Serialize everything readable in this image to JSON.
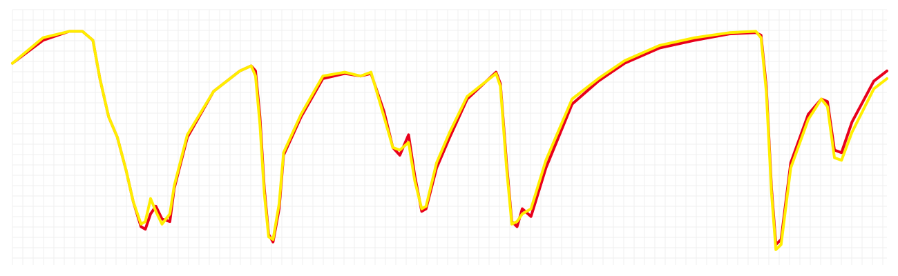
{
  "chart_data": {
    "type": "line",
    "title": "",
    "xlabel": "",
    "ylabel": "",
    "grid": true,
    "xlim": [
      0,
      100
    ],
    "ylim": [
      0,
      100
    ],
    "series": [
      {
        "color": "#e8001c",
        "points": [
          [
            0,
            79
          ],
          [
            3.5,
            88
          ],
          [
            6.5,
            91.5
          ],
          [
            8,
            91.5
          ],
          [
            9.2,
            88
          ],
          [
            10,
            73
          ],
          [
            11,
            58
          ],
          [
            12,
            50
          ],
          [
            13,
            37
          ],
          [
            13.8,
            25
          ],
          [
            14.7,
            15
          ],
          [
            15.2,
            14
          ],
          [
            15.8,
            20
          ],
          [
            16.4,
            23
          ],
          [
            17.1,
            18
          ],
          [
            18,
            17
          ],
          [
            18.5,
            30
          ],
          [
            20,
            50
          ],
          [
            23,
            68
          ],
          [
            26,
            76
          ],
          [
            27.3,
            78
          ],
          [
            27.8,
            76
          ],
          [
            28.3,
            58
          ],
          [
            28.8,
            30
          ],
          [
            29.3,
            12
          ],
          [
            29.8,
            9
          ],
          [
            30.5,
            22
          ],
          [
            31,
            43
          ],
          [
            33,
            58
          ],
          [
            35.5,
            73
          ],
          [
            38,
            75
          ],
          [
            39.8,
            74
          ],
          [
            41,
            75
          ],
          [
            42.5,
            60
          ],
          [
            43.5,
            46
          ],
          [
            44.3,
            43
          ],
          [
            45.3,
            51
          ],
          [
            46,
            35
          ],
          [
            46.8,
            21
          ],
          [
            47.3,
            22
          ],
          [
            48.5,
            38
          ],
          [
            50,
            50
          ],
          [
            52,
            65
          ],
          [
            55.3,
            75.5
          ],
          [
            55.8,
            71
          ],
          [
            56.5,
            40
          ],
          [
            57.1,
            17
          ],
          [
            57.7,
            15
          ],
          [
            58.3,
            22
          ],
          [
            59.3,
            19
          ],
          [
            61,
            38
          ],
          [
            64,
            63
          ],
          [
            67,
            72
          ],
          [
            70,
            79
          ],
          [
            74,
            85
          ],
          [
            78,
            88
          ],
          [
            82,
            90.5
          ],
          [
            85,
            91
          ],
          [
            85.6,
            90
          ],
          [
            86.2,
            70
          ],
          [
            86.8,
            30
          ],
          [
            87.3,
            8
          ],
          [
            87.9,
            10
          ],
          [
            89,
            40
          ],
          [
            91,
            59
          ],
          [
            92.5,
            65
          ],
          [
            93.2,
            64
          ],
          [
            94,
            45
          ],
          [
            94.8,
            44
          ],
          [
            96,
            56
          ],
          [
            98.5,
            72
          ],
          [
            100,
            76
          ]
        ]
      },
      {
        "color": "#ffee00",
        "points": [
          [
            0,
            79
          ],
          [
            3.5,
            89
          ],
          [
            6.5,
            91.5
          ],
          [
            8,
            91.5
          ],
          [
            9.2,
            88
          ],
          [
            10,
            73
          ],
          [
            11,
            58
          ],
          [
            12,
            50
          ],
          [
            13,
            37
          ],
          [
            13.8,
            25
          ],
          [
            14.7,
            16
          ],
          [
            15.2,
            17
          ],
          [
            15.8,
            26
          ],
          [
            16.4,
            21
          ],
          [
            17.1,
            16
          ],
          [
            18,
            20
          ],
          [
            18.5,
            31
          ],
          [
            20,
            51
          ],
          [
            23,
            68
          ],
          [
            26,
            76
          ],
          [
            27.3,
            78
          ],
          [
            27.8,
            74
          ],
          [
            28.3,
            55
          ],
          [
            28.8,
            28
          ],
          [
            29.3,
            11
          ],
          [
            29.8,
            10
          ],
          [
            30.5,
            24
          ],
          [
            31,
            44
          ],
          [
            33,
            59
          ],
          [
            35.5,
            74
          ],
          [
            38,
            75.5
          ],
          [
            39.8,
            74
          ],
          [
            41,
            75.5
          ],
          [
            42.5,
            58
          ],
          [
            43.5,
            46
          ],
          [
            44.3,
            45
          ],
          [
            45.3,
            48
          ],
          [
            46,
            33
          ],
          [
            46.8,
            22
          ],
          [
            47.3,
            23
          ],
          [
            48.5,
            40
          ],
          [
            50,
            52
          ],
          [
            52,
            66
          ],
          [
            55.3,
            75
          ],
          [
            55.8,
            70
          ],
          [
            56.5,
            38
          ],
          [
            57.1,
            16
          ],
          [
            57.7,
            17
          ],
          [
            58.3,
            20
          ],
          [
            59.3,
            22
          ],
          [
            61,
            41
          ],
          [
            64,
            65
          ],
          [
            67,
            73
          ],
          [
            70,
            80
          ],
          [
            74,
            86
          ],
          [
            78,
            89
          ],
          [
            82,
            91
          ],
          [
            85,
            91.5
          ],
          [
            85.6,
            89
          ],
          [
            86.2,
            68
          ],
          [
            86.8,
            28
          ],
          [
            87.3,
            6
          ],
          [
            87.9,
            8
          ],
          [
            89,
            38
          ],
          [
            91,
            57
          ],
          [
            92.5,
            65
          ],
          [
            93.2,
            62
          ],
          [
            94,
            42
          ],
          [
            94.8,
            41
          ],
          [
            96,
            52
          ],
          [
            98.5,
            69
          ],
          [
            100,
            73
          ]
        ]
      }
    ]
  }
}
